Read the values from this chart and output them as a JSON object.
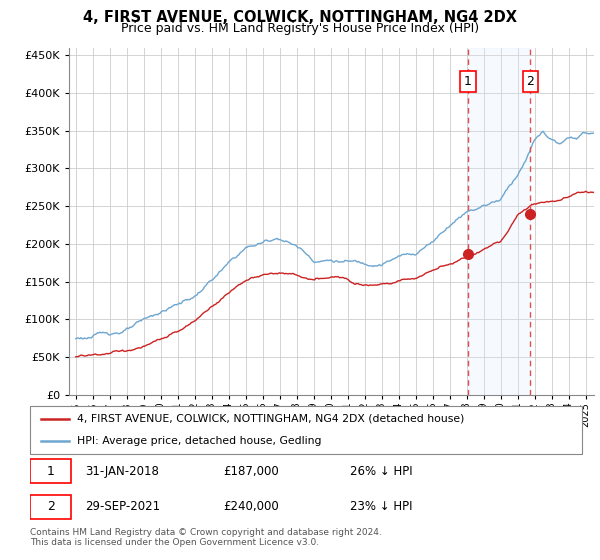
{
  "title": "4, FIRST AVENUE, COLWICK, NOTTINGHAM, NG4 2DX",
  "subtitle": "Price paid vs. HM Land Registry's House Price Index (HPI)",
  "legend_line1": "4, FIRST AVENUE, COLWICK, NOTTINGHAM, NG4 2DX (detached house)",
  "legend_line2": "HPI: Average price, detached house, Gedling",
  "annotation1": {
    "num": "1",
    "date": "31-JAN-2018",
    "price": "£187,000",
    "pct": "26% ↓ HPI"
  },
  "annotation2": {
    "num": "2",
    "date": "29-SEP-2021",
    "price": "£240,000",
    "pct": "23% ↓ HPI"
  },
  "footer": "Contains HM Land Registry data © Crown copyright and database right 2024.\nThis data is licensed under the Open Government Licence v3.0.",
  "hpi_color": "#6ea6d0",
  "price_color": "#cc2222",
  "vline_color": "#e05050",
  "shade_color": "#ddeeff",
  "background_color": "#ffffff",
  "ylim": [
    0,
    460000
  ],
  "yticks": [
    0,
    50000,
    100000,
    150000,
    200000,
    250000,
    300000,
    350000,
    400000,
    450000
  ],
  "sale1_x": 2018.08,
  "sale1_y": 187000,
  "sale2_x": 2021.75,
  "sale2_y": 240000,
  "xlim_left": 1994.6,
  "xlim_right": 2025.5
}
